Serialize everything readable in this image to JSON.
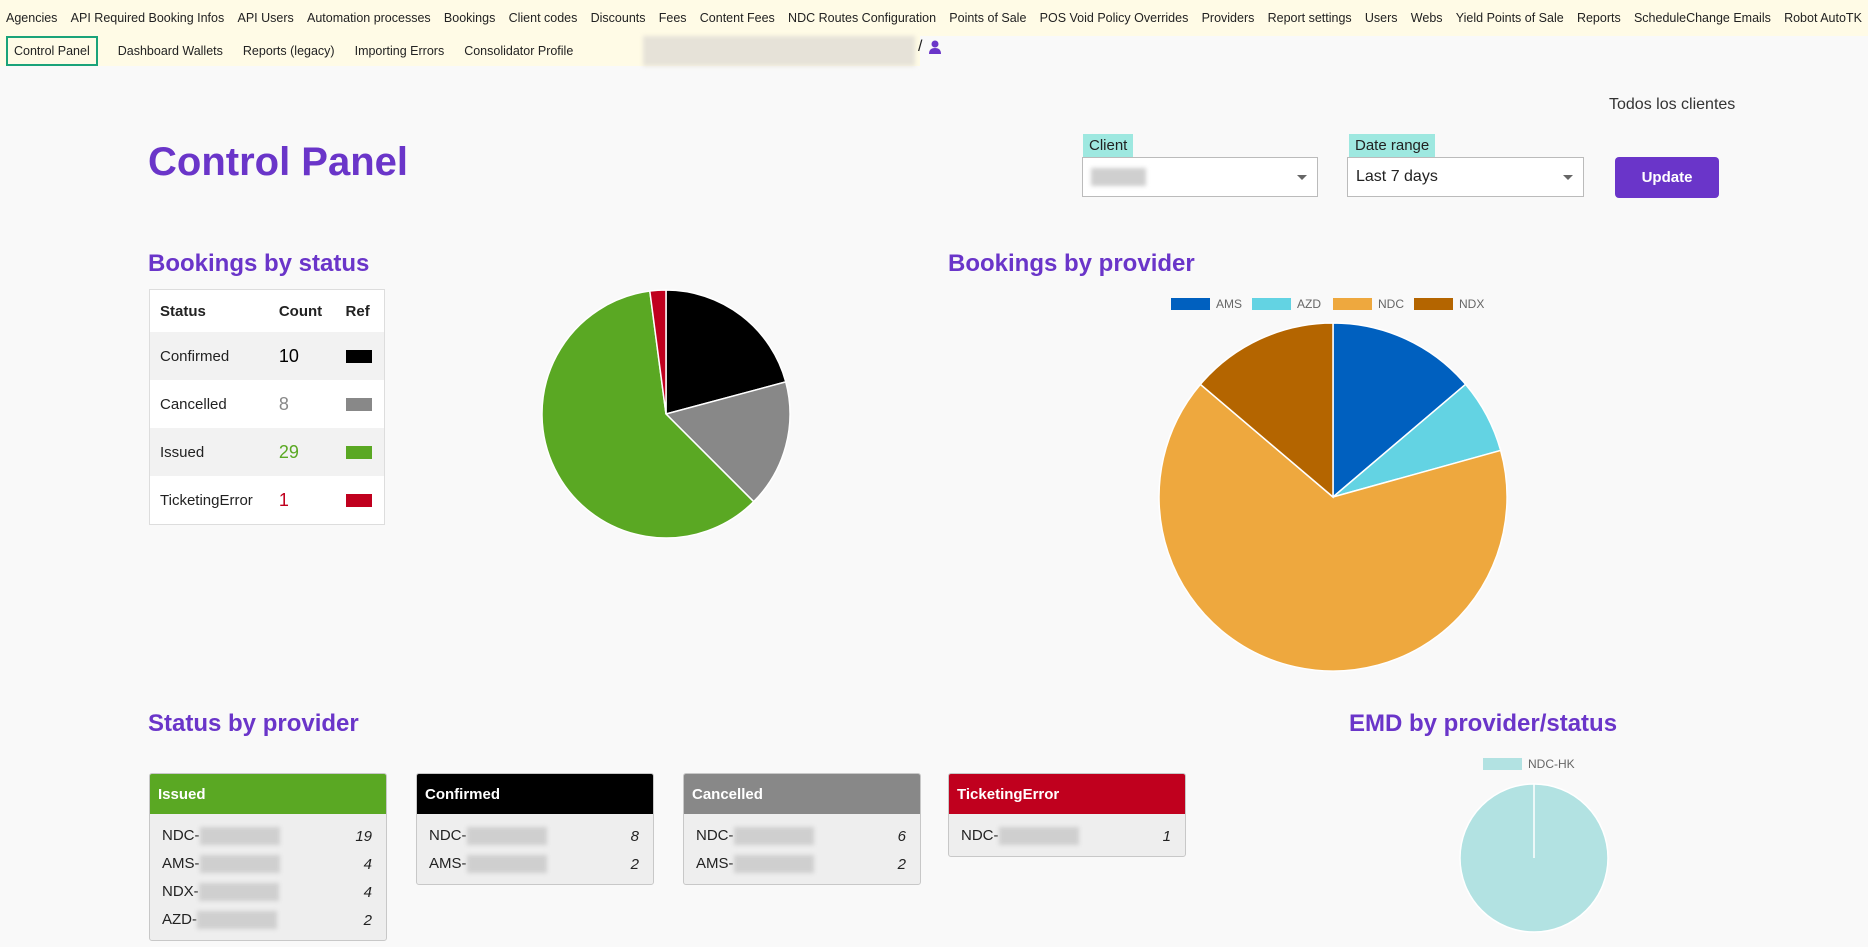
{
  "nav": {
    "row1": [
      "Agencies",
      "API Required Booking Infos",
      "API Users",
      "Automation processes",
      "Bookings",
      "Client codes",
      "Discounts",
      "Fees",
      "Content Fees",
      "NDC Routes Configuration",
      "Points of Sale",
      "POS Void Policy Overrides",
      "Providers",
      "Report settings",
      "Users",
      "Webs",
      "Yield Points of Sale",
      "Reports",
      "ScheduleChange Emails",
      "Robot AutoTK"
    ],
    "row2": [
      "Control Panel",
      "Dashboard Wallets",
      "Reports (legacy)",
      "Importing Errors",
      "Consolidator Profile"
    ],
    "user_separator": "/"
  },
  "header": {
    "scope": "Todos los clientes",
    "title": "Control Panel",
    "client_label": "Client",
    "date_label": "Date range",
    "date_value": "Last 7 days",
    "update": "Update"
  },
  "status_table": {
    "headers": [
      "Status",
      "Count",
      "Ref"
    ]
  },
  "status_by_provider": {
    "title": "Status by provider",
    "cards": [
      {
        "status": "Issued",
        "color": "#5aa823",
        "rows": [
          {
            "provider": "NDC-",
            "count": 19
          },
          {
            "provider": "AMS-",
            "count": 4
          },
          {
            "provider": "NDX-",
            "count": 4
          },
          {
            "provider": "AZD-",
            "count": 2
          }
        ]
      },
      {
        "status": "Confirmed",
        "color": "#000000",
        "rows": [
          {
            "provider": "NDC-",
            "count": 8
          },
          {
            "provider": "AMS-",
            "count": 2
          }
        ]
      },
      {
        "status": "Cancelled",
        "color": "#888888",
        "rows": [
          {
            "provider": "NDC-",
            "count": 6
          },
          {
            "provider": "AMS-",
            "count": 2
          }
        ]
      },
      {
        "status": "TicketingError",
        "color": "#c0001e",
        "rows": [
          {
            "provider": "NDC-",
            "count": 1
          }
        ]
      }
    ]
  },
  "chart_data": [
    {
      "type": "pie",
      "title": "Bookings by status",
      "categories": [
        "Confirmed",
        "Cancelled",
        "Issued",
        "TicketingError"
      ],
      "values": [
        10,
        8,
        29,
        1
      ],
      "colors": [
        "#000000",
        "#888888",
        "#5aa823",
        "#c0001e"
      ]
    },
    {
      "type": "pie",
      "title": "Bookings by provider",
      "categories": [
        "AMS",
        "AZD",
        "NDC",
        "NDX"
      ],
      "values": [
        4,
        2,
        19,
        4
      ],
      "colors": [
        "#0060bf",
        "#63d3e3",
        "#eea83e",
        "#b46500"
      ],
      "legend": "top"
    },
    {
      "type": "pie",
      "title": "EMD by provider/status",
      "categories": [
        "NDC-HK"
      ],
      "values": [
        1
      ],
      "colors": [
        "#b2e2e2"
      ],
      "legend": "top"
    }
  ]
}
